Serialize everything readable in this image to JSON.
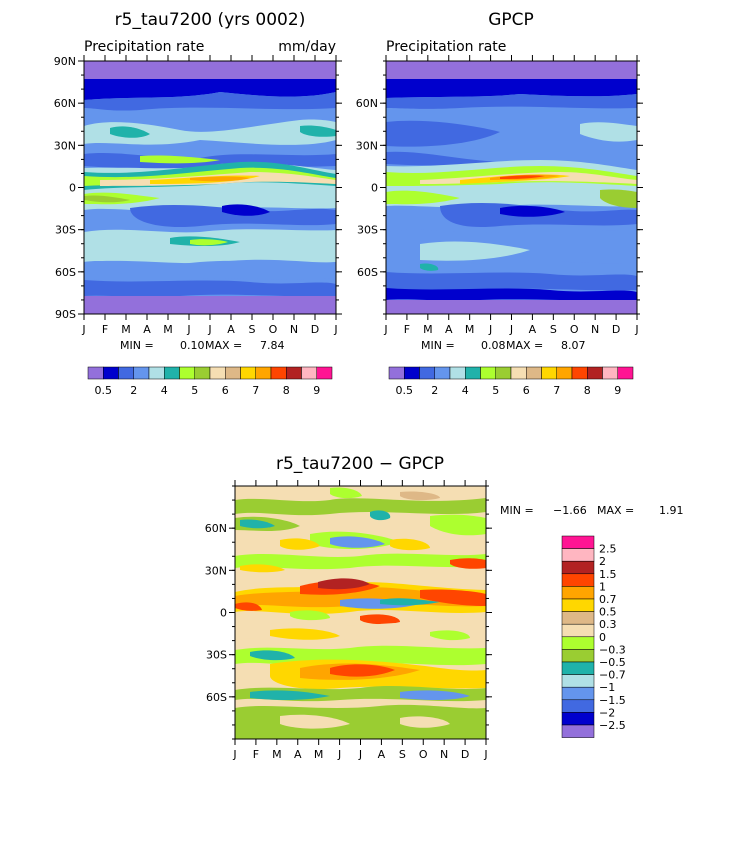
{
  "chart_data": [
    {
      "type": "heatmap",
      "id": "model",
      "title": "r5_tau7200 (yrs 0002)",
      "subtitle_left": "Precipitation rate",
      "subtitle_right": "mm/day",
      "x_ticks": [
        "J",
        "F",
        "M",
        "A",
        "M",
        "J",
        "J",
        "A",
        "S",
        "O",
        "N",
        "D",
        "J"
      ],
      "y_ticks": [
        "90N",
        "60N",
        "30N",
        "0",
        "30S",
        "60S",
        "90S"
      ],
      "ylim": [
        -90,
        90
      ],
      "min_label": "MIN =",
      "min_value": "0.10",
      "max_label": "MAX =",
      "max_value": "7.84",
      "colorbar_labels": [
        "0.5",
        "2",
        "4",
        "5",
        "6",
        "7",
        "8",
        "9"
      ]
    },
    {
      "type": "heatmap",
      "id": "obs",
      "title": "GPCP",
      "subtitle_left": "Precipitation rate",
      "x_ticks": [
        "J",
        "F",
        "M",
        "A",
        "M",
        "J",
        "J",
        "A",
        "S",
        "O",
        "N",
        "D",
        "J"
      ],
      "y_ticks": [
        "60N",
        "30N",
        "0",
        "30S",
        "60S"
      ],
      "ylim": [
        -90,
        90
      ],
      "min_label": "MIN =",
      "min_value": "0.08",
      "max_label": "MAX =",
      "max_value": "8.07",
      "colorbar_labels": [
        "0.5",
        "2",
        "4",
        "5",
        "6",
        "7",
        "8",
        "9"
      ]
    },
    {
      "type": "heatmap",
      "id": "diff",
      "title": "r5_tau7200 − GPCP",
      "x_ticks": [
        "J",
        "F",
        "M",
        "A",
        "M",
        "J",
        "J",
        "A",
        "S",
        "O",
        "N",
        "D",
        "J"
      ],
      "y_ticks": [
        "60N",
        "30N",
        "0",
        "30S",
        "60S"
      ],
      "ylim": [
        -90,
        90
      ],
      "min_label": "MIN =",
      "min_value": "−1.66",
      "max_label": "MAX =",
      "max_value": "1.91",
      "legend_labels": [
        "2.5",
        "2",
        "1.5",
        "1",
        "0.7",
        "0.5",
        "0.3",
        "0",
        "−0.3",
        "−0.5",
        "−0.7",
        "−1",
        "−1.5",
        "−2",
        "−2.5"
      ]
    }
  ],
  "colors": {
    "precip_scale": [
      "#9370DB",
      "#0000CD",
      "#4169E1",
      "#6495ED",
      "#B0E0E6",
      "#20B2AA",
      "#ADFF2F",
      "#9ACD32",
      "#F5DEB3",
      "#DEB887",
      "#FFD700",
      "#FFA500",
      "#FF4500",
      "#B22222",
      "#FFB6C1",
      "#FF1493"
    ],
    "diff_scale": [
      "#FF1493",
      "#FFB6C1",
      "#B22222",
      "#FF4500",
      "#FFA500",
      "#FFD700",
      "#DEB887",
      "#F5DEB3",
      "#ADFF2F",
      "#9ACD32",
      "#20B2AA",
      "#B0E0E6",
      "#6495ED",
      "#4169E1",
      "#0000CD",
      "#9370DB"
    ]
  }
}
